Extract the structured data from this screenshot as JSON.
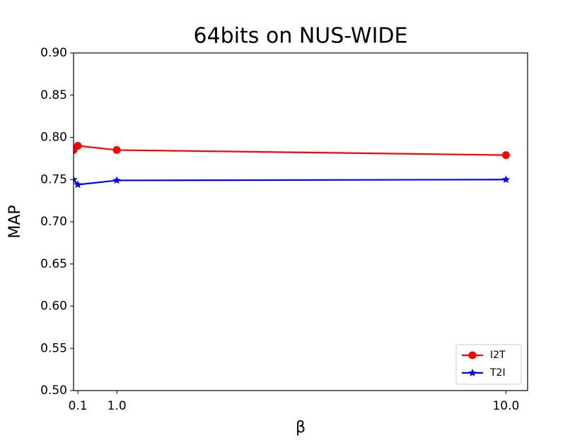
{
  "chart_data": {
    "type": "line",
    "title": "64bits on NUS-WIDE",
    "x_label": "β",
    "y_label": "MAP",
    "x": [
      0,
      0.1,
      1.0,
      10.0
    ],
    "series": [
      {
        "name": "I2T",
        "color": "#ff0000",
        "marker": "circle",
        "values": [
          0.785,
          0.79,
          0.785,
          0.779
        ]
      },
      {
        "name": "T2I",
        "color": "#0000ff",
        "marker": "star",
        "values": [
          0.75,
          0.744,
          0.749,
          0.75
        ]
      }
    ],
    "xlim": [
      0,
      10.5
    ],
    "xticks": [
      0.1,
      {
        "value": 1.0,
        "label": "1.0"
      },
      {
        "value": 10.0,
        "label": "10.0"
      }
    ],
    "ylim": [
      0.5,
      0.9
    ],
    "yticks": [
      {
        "value": 0.5,
        "label": "0.50"
      },
      {
        "value": 0.55,
        "label": "0.55"
      },
      {
        "value": 0.6,
        "label": "0.60"
      },
      {
        "value": 0.65,
        "label": "0.65"
      },
      {
        "value": 0.7,
        "label": "0.70"
      },
      {
        "value": 0.75,
        "label": "0.75"
      },
      {
        "value": 0.8,
        "label": "0.80"
      },
      {
        "value": 0.85,
        "label": "0.85"
      },
      {
        "value": 0.9,
        "label": "0.90"
      }
    ],
    "grid": false,
    "legend": "lower right"
  }
}
